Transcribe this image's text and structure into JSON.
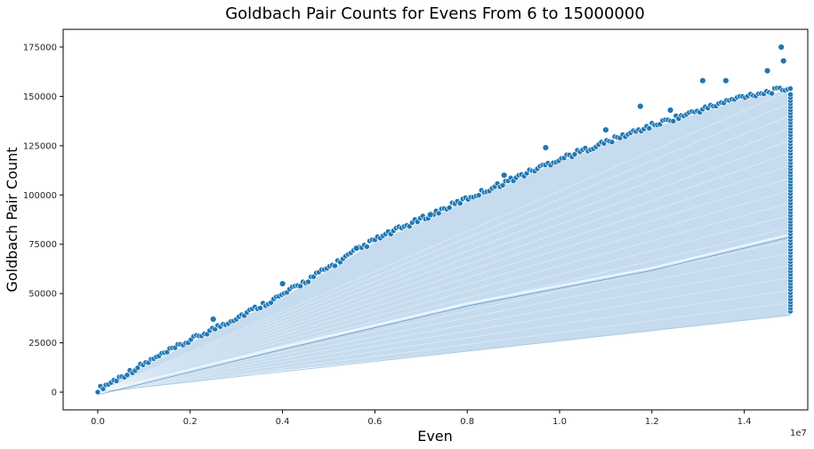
{
  "chart_data": {
    "type": "scatter",
    "title": "Goldbach Pair Counts for Evens From 6 to 15000000",
    "xlabel": "Even",
    "ylabel": "Goldbach Pair Count",
    "x_offset_label": "1e7",
    "xlim": [
      -0.075,
      1.5375
    ],
    "ylim": [
      -9000,
      184000
    ],
    "xticks": [
      0.0,
      0.2,
      0.4,
      0.6,
      0.8,
      1.0,
      1.2,
      1.4
    ],
    "xtick_labels": [
      "0.0",
      "0.2",
      "0.4",
      "0.6",
      "0.8",
      "1.0",
      "1.2",
      "1.4"
    ],
    "yticks": [
      0,
      25000,
      50000,
      75000,
      100000,
      125000,
      150000,
      175000
    ],
    "ytick_labels": [
      "0",
      "25000",
      "50000",
      "75000",
      "100000",
      "125000",
      "150000",
      "175000"
    ],
    "grid": false,
    "legend": "none",
    "series": [
      {
        "upper_envelope": [
          [
            0.0,
            0
          ],
          [
            0.1,
            13000
          ],
          [
            0.2,
            25000
          ],
          [
            0.4,
            48000
          ],
          [
            0.6,
            76000
          ],
          [
            0.8,
            97000
          ],
          [
            1.0,
            117000
          ],
          [
            1.2,
            134000
          ],
          [
            1.4,
            149000
          ],
          [
            1.5,
            153000
          ]
        ],
        "middle_band": [
          [
            0.0,
            0
          ],
          [
            0.4,
            23000
          ],
          [
            0.8,
            45000
          ],
          [
            1.2,
            63000
          ],
          [
            1.5,
            80000
          ]
        ],
        "lower_envelope": [
          [
            0.0,
            0
          ],
          [
            0.4,
            11000
          ],
          [
            0.8,
            21000
          ],
          [
            1.2,
            31000
          ],
          [
            1.5,
            39000
          ]
        ],
        "outliers": [
          [
            1.48,
            175000
          ],
          [
            1.485,
            168000
          ],
          [
            1.31,
            158000
          ],
          [
            1.175,
            145000
          ],
          [
            0.97,
            124000
          ],
          [
            1.45,
            163000
          ],
          [
            1.36,
            158000
          ],
          [
            1.24,
            143000
          ],
          [
            1.1,
            133000
          ],
          [
            0.88,
            110000
          ],
          [
            0.72,
            90000
          ],
          [
            0.56,
            73000
          ],
          [
            0.4,
            55000
          ],
          [
            0.25,
            37000
          ]
        ],
        "vertical_strip": {
          "x": 1.5,
          "y_min": 41000,
          "y_max": 151000
        }
      }
    ],
    "colors": {
      "marker": "#1f77b4",
      "marker_edge": "#ffffff",
      "band_light": "#c6dcee",
      "band_dark": "#a9c9e4",
      "axis": "#000000"
    }
  }
}
